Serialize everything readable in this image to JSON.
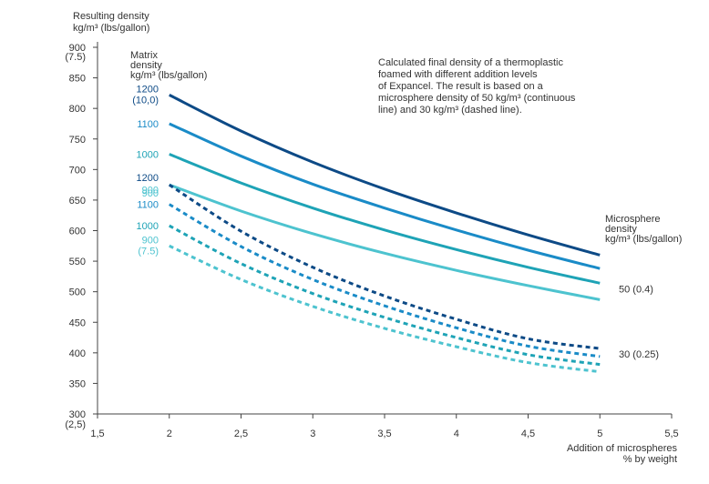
{
  "chart_data": {
    "type": "line",
    "ylabel_lines": [
      "Resulting density",
      "kg/m³ (lbs/gallon)"
    ],
    "xlabel_lines": [
      "Addition of microspheres",
      "% by weight"
    ],
    "matrix_label_lines": [
      "Matrix",
      "density",
      "kg/m³ (lbs/gallon)"
    ],
    "microsphere_label_lines": [
      "Microsphere",
      "density",
      "kg/m³ (lbs/gallon)"
    ],
    "annotation_lines": [
      "Calculated final density of a thermoplastic",
      "foamed with different addition levels",
      "of Expancel. The result is based on a",
      "microsphere density of 50 kg/m³ (continuous",
      "line) and 30 kg/m³ (dashed line)."
    ],
    "xlim": [
      1.5,
      5.5
    ],
    "ylim": [
      300,
      900
    ],
    "x_ticks": [
      1.5,
      2,
      2.5,
      3,
      3.5,
      4,
      4.5,
      5,
      5.5
    ],
    "x_tick_labels": [
      "1,5",
      "2",
      "2,5",
      "3",
      "3,5",
      "4",
      "4,5",
      "5",
      "5,5"
    ],
    "y_ticks": [
      300,
      350,
      400,
      450,
      500,
      550,
      600,
      650,
      700,
      750,
      800,
      850,
      900
    ],
    "y_tick_labels": [
      "300",
      "350",
      "400",
      "450",
      "500",
      "550",
      "600",
      "650",
      "700",
      "750",
      "800",
      "850",
      "900"
    ],
    "y_tick_sublabels": {
      "300": "(2,5)",
      "900": "(7.5)"
    },
    "microsphere_groups": [
      {
        "label": "50 (0.4)",
        "y_at": 505
      },
      {
        "label": "30 (0.25)",
        "y_at": 398
      }
    ],
    "series": [
      {
        "label_lines": [
          "1200",
          "(10,0)"
        ],
        "label_color": "#0d4a86",
        "color": "#0d4a86",
        "dashed": false,
        "x": [
          2,
          2.5,
          3,
          3.5,
          4,
          4.5,
          5
        ],
        "values": [
          822,
          763,
          712,
          668,
          629,
          593,
          560
        ]
      },
      {
        "label_lines": [
          "1100"
        ],
        "label_color": "#1a8bc7",
        "color": "#1a8bc7",
        "dashed": false,
        "x": [
          2,
          2.5,
          3,
          3.5,
          4,
          4.5,
          5
        ],
        "values": [
          775,
          722,
          676,
          637,
          601,
          568,
          538
        ]
      },
      {
        "label_lines": [
          "1000"
        ],
        "label_color": "#1ea3b6",
        "color": "#1ea3b6",
        "dashed": false,
        "x": [
          2,
          2.5,
          3,
          3.5,
          4,
          4.5,
          5
        ],
        "values": [
          725,
          678,
          637,
          601,
          569,
          540,
          514
        ]
      },
      {
        "label_lines": [
          "900"
        ],
        "label_color": "#4dc3cf",
        "color": "#4dc3cf",
        "dashed": false,
        "x": [
          2,
          2.5,
          3,
          3.5,
          4,
          4.5,
          5
        ],
        "values": [
          675,
          632,
          595,
          563,
          535,
          510,
          487
        ]
      },
      {
        "label_lines": [
          "1200"
        ],
        "label_color": "#0d4a86",
        "color": "#0d4a86",
        "dashed": true,
        "x": [
          2,
          2.5,
          3,
          3.5,
          4,
          4.5,
          5
        ],
        "values": [
          675,
          599,
          540,
          493,
          455,
          423,
          407
        ]
      },
      {
        "label_lines": [
          "1100"
        ],
        "label_color": "#1a8bc7",
        "color": "#1a8bc7",
        "dashed": true,
        "x": [
          2,
          2.5,
          3,
          3.5,
          4,
          4.5,
          5
        ],
        "values": [
          643,
          574,
          520,
          477,
          441,
          411,
          394
        ]
      },
      {
        "label_lines": [
          "1000"
        ],
        "label_color": "#1ea3b6",
        "color": "#1ea3b6",
        "dashed": true,
        "x": [
          2,
          2.5,
          3,
          3.5,
          4,
          4.5,
          5
        ],
        "values": [
          608,
          546,
          497,
          458,
          425,
          397,
          381
        ]
      },
      {
        "label_lines": [
          "900",
          "(7.5)"
        ],
        "label_color": "#4dc3cf",
        "color": "#4dc3cf",
        "dashed": true,
        "x": [
          2,
          2.5,
          3,
          3.5,
          4,
          4.5,
          5
        ],
        "values": [
          575,
          520,
          476,
          440,
          410,
          384,
          369
        ]
      },
      {
        "label_lines": [
          "900"
        ],
        "label_color": "#4dc3cf",
        "color": "#4dc3cf",
        "dashed": false,
        "label_only": true,
        "x": [
          2
        ],
        "values": [
          667
        ]
      }
    ],
    "legend": "right",
    "grid": false
  }
}
